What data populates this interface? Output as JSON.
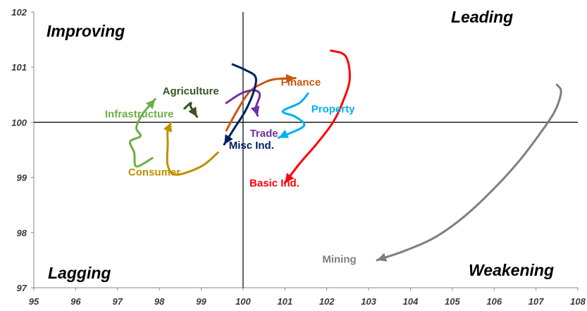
{
  "chart_data": {
    "type": "line",
    "xlim": [
      95,
      108
    ],
    "ylim": [
      97,
      102
    ],
    "x_ticks": [
      "95",
      "96",
      "97",
      "98",
      "99",
      "100",
      "101",
      "102",
      "103",
      "104",
      "105",
      "106",
      "107",
      "108"
    ],
    "y_ticks": [
      "97",
      "98",
      "99",
      "100",
      "101",
      "102"
    ],
    "reference_lines": {
      "x": 100,
      "y": 100
    },
    "grid": false,
    "quadrants": {
      "improving": "Improving",
      "leading": "Leading",
      "lagging": "Lagging",
      "weakening": "Weakening"
    },
    "series": [
      {
        "name": "Agriculture",
        "color": "#375623",
        "label_at": [
          98.75,
          100.57
        ],
        "points": [
          [
            98.6,
            100.25
          ],
          [
            98.75,
            100.35
          ],
          [
            98.75,
            100.28
          ],
          [
            98.9,
            100.1
          ]
        ]
      },
      {
        "name": "Infrastructure",
        "color": "#70ad47",
        "label_at": [
          97.52,
          100.15
        ],
        "points": [
          [
            97.83,
            99.35
          ],
          [
            97.45,
            99.2
          ],
          [
            97.4,
            99.45
          ],
          [
            97.3,
            99.65
          ],
          [
            97.55,
            99.75
          ],
          [
            97.45,
            99.9
          ],
          [
            97.6,
            100.15
          ],
          [
            97.9,
            100.42
          ]
        ]
      },
      {
        "name": "Consumer",
        "color": "#bf9000",
        "label_at": [
          97.88,
          99.1
        ],
        "points": [
          [
            99.4,
            99.45
          ],
          [
            99.0,
            99.2
          ],
          [
            98.4,
            99.05
          ],
          [
            98.2,
            99.22
          ],
          [
            98.2,
            99.6
          ],
          [
            98.2,
            99.85
          ],
          [
            98.28,
            100.0
          ]
        ]
      },
      {
        "name": "Finance",
        "color": "#c55a11",
        "label_at": [
          101.38,
          100.73
        ],
        "points": [
          [
            99.6,
            99.85
          ],
          [
            99.85,
            100.2
          ],
          [
            100.15,
            100.55
          ],
          [
            100.45,
            100.7
          ],
          [
            100.75,
            100.78
          ],
          [
            101.25,
            100.8
          ]
        ]
      },
      {
        "name": "Trade",
        "color": "#7030a0",
        "label_at": [
          100.5,
          99.8
        ],
        "points": [
          [
            99.6,
            100.35
          ],
          [
            99.95,
            100.52
          ],
          [
            100.25,
            100.58
          ],
          [
            100.4,
            100.5
          ],
          [
            100.3,
            100.25
          ],
          [
            100.35,
            100.12
          ]
        ]
      },
      {
        "name": "Misc Ind.",
        "color": "#002060",
        "label_at": [
          100.2,
          99.58
        ],
        "points": [
          [
            99.75,
            101.05
          ],
          [
            100.05,
            100.95
          ],
          [
            100.3,
            100.82
          ],
          [
            100.25,
            100.55
          ],
          [
            100.05,
            100.2
          ],
          [
            99.8,
            99.9
          ],
          [
            99.55,
            99.6
          ]
        ]
      },
      {
        "name": "Property",
        "color": "#00b0f0",
        "label_at": [
          102.15,
          100.24
        ],
        "points": [
          [
            101.55,
            100.52
          ],
          [
            101.35,
            100.35
          ],
          [
            100.95,
            100.2
          ],
          [
            101.25,
            100.1
          ],
          [
            101.45,
            99.93
          ],
          [
            100.85,
            99.72
          ]
        ]
      },
      {
        "name": "Basic Ind.",
        "color": "#ff0000",
        "label_at": [
          100.75,
          98.9
        ],
        "points": [
          [
            102.1,
            101.3
          ],
          [
            102.45,
            101.2
          ],
          [
            102.55,
            100.8
          ],
          [
            102.4,
            100.4
          ],
          [
            102.15,
            100.0
          ],
          [
            101.75,
            99.6
          ],
          [
            101.35,
            99.25
          ],
          [
            101.0,
            98.9
          ]
        ]
      },
      {
        "name": "Mining",
        "color": "#7f7f7f",
        "label_at": [
          102.3,
          97.52
        ],
        "points": [
          [
            107.5,
            100.68
          ],
          [
            107.6,
            100.55
          ],
          [
            107.45,
            100.2
          ],
          [
            107.1,
            99.8
          ],
          [
            106.6,
            99.3
          ],
          [
            106.0,
            98.8
          ],
          [
            105.3,
            98.3
          ],
          [
            104.6,
            97.92
          ],
          [
            103.9,
            97.68
          ],
          [
            103.2,
            97.5
          ]
        ]
      }
    ]
  }
}
